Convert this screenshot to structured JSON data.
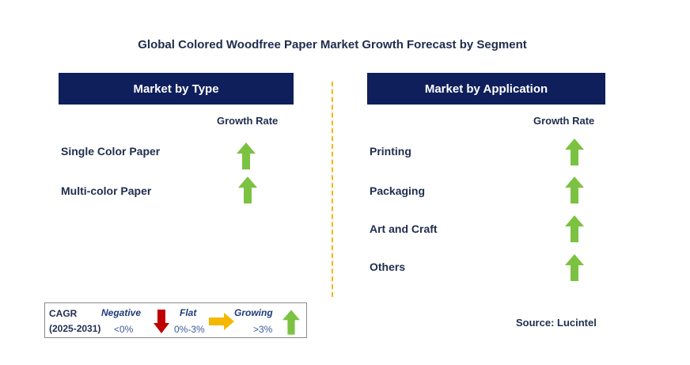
{
  "title": "Global Colored Woodfree Paper Market Growth Forecast by Segment",
  "left_panel": {
    "header": "Market by Type",
    "growth_label": "Growth Rate",
    "items": [
      {
        "label": "Single Color Paper",
        "trend": "growing"
      },
      {
        "label": "Multi-color Paper",
        "trend": "growing"
      }
    ]
  },
  "right_panel": {
    "header": "Market by Application",
    "growth_label": "Growth Rate",
    "items": [
      {
        "label": "Printing",
        "trend": "growing"
      },
      {
        "label": "Packaging",
        "trend": "growing"
      },
      {
        "label": "Art and Craft",
        "trend": "growing"
      },
      {
        "label": "Others",
        "trend": "growing"
      }
    ]
  },
  "legend": {
    "cagr_label": "CAGR",
    "period": "(2025-2031)",
    "negative_label": "Negative",
    "negative_range": "<0%",
    "flat_label": "Flat",
    "flat_range": "0%-3%",
    "growing_label": "Growing",
    "growing_range": ">3%"
  },
  "source": "Source: Lucintel",
  "colors": {
    "header_bg": "#0f1f5c",
    "growing_arrow": "#7cc242",
    "negative_arrow": "#c00000",
    "flat_arrow": "#f5b800",
    "divider": "#f5b800"
  }
}
